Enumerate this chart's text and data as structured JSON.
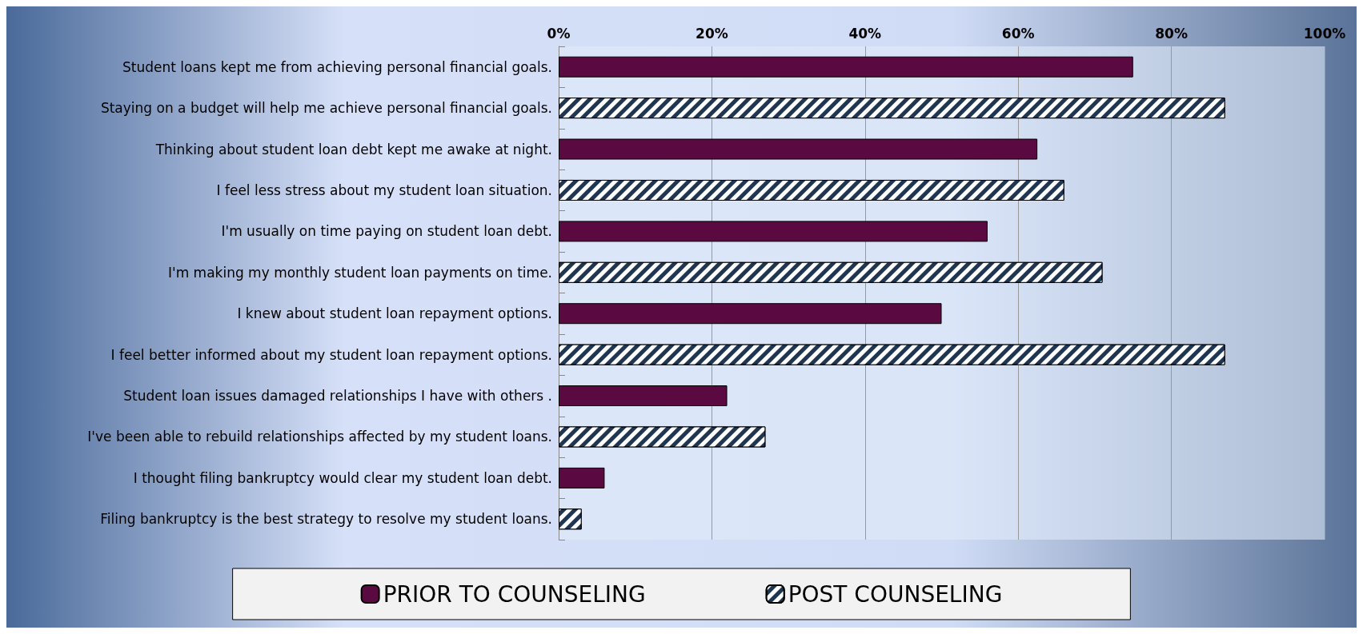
{
  "chart_data": {
    "type": "bar",
    "orientation": "horizontal",
    "categories": [
      "Student loans kept me from achieving personal financial goals.",
      "Staying on a budget will help me achieve personal financial goals.",
      "Thinking about student loan debt kept me awake at night.",
      "I feel less stress about my student loan situation.",
      "I'm usually on time paying on student loan debt.",
      "I'm making my monthly student loan payments on time.",
      "I knew about student loan repayment options.",
      "I feel better informed about my student loan repayment options.",
      "Student loan issues damaged relationships I have with others .",
      "I've been able to rebuild relationships affected by my student loans.",
      "I thought filing bankruptcy would clear my student loan debt.",
      "Filing bankruptcy is the best strategy to resolve my student loans."
    ],
    "series": [
      {
        "name": "PRIOR TO COUNSELING",
        "color": "#5a0a40",
        "values": [
          75,
          null,
          62.5,
          null,
          56,
          null,
          50,
          null,
          22,
          null,
          6,
          null
        ]
      },
      {
        "name": "POST COUNSELING",
        "color": "#1f3550",
        "values": [
          null,
          87,
          null,
          66,
          null,
          71,
          null,
          87,
          null,
          27,
          null,
          3
        ]
      }
    ],
    "xlim": [
      0,
      100
    ],
    "xticks": [
      {
        "value": 0,
        "label": "0%"
      },
      {
        "value": 20,
        "label": "20%"
      },
      {
        "value": 40,
        "label": "40%"
      },
      {
        "value": 60,
        "label": "60%"
      },
      {
        "value": 80,
        "label": "80%"
      },
      {
        "value": 100,
        "label": "100%"
      }
    ],
    "grid": "x",
    "legend": "bottom"
  }
}
